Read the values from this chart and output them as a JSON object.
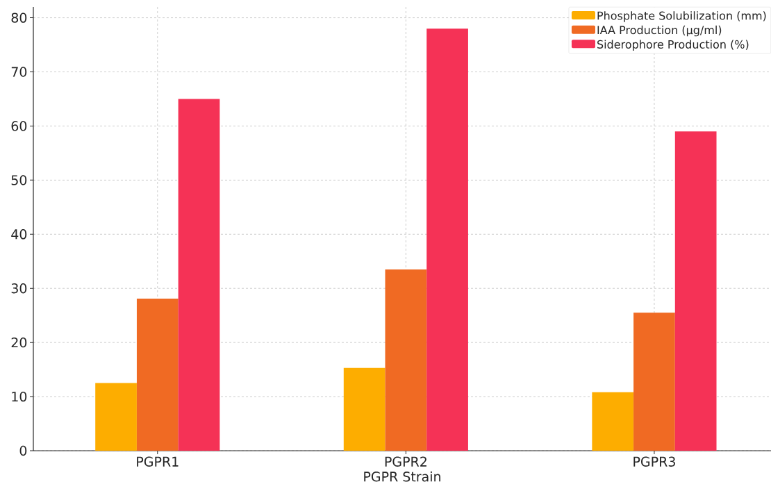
{
  "chart_data": {
    "type": "bar",
    "xlabel": "PGPR Strain",
    "categories": [
      "PGPR1",
      "PGPR2",
      "PGPR3"
    ],
    "series": [
      {
        "name": "Phosphate Solubilization (mm)",
        "color": "#fdad00",
        "values": [
          12.5,
          15.3,
          10.8
        ]
      },
      {
        "name": "IAA Production (µg/ml)",
        "color": "#f06a23",
        "values": [
          28.1,
          33.5,
          25.5
        ]
      },
      {
        "name": "Siderophore Production (%)",
        "color": "#f53256",
        "values": [
          65,
          78,
          59
        ]
      }
    ],
    "ylim": [
      0,
      82
    ],
    "yticks": [
      0,
      10,
      20,
      30,
      40,
      50,
      60,
      70,
      80
    ],
    "grid": true,
    "legend": "top right"
  }
}
